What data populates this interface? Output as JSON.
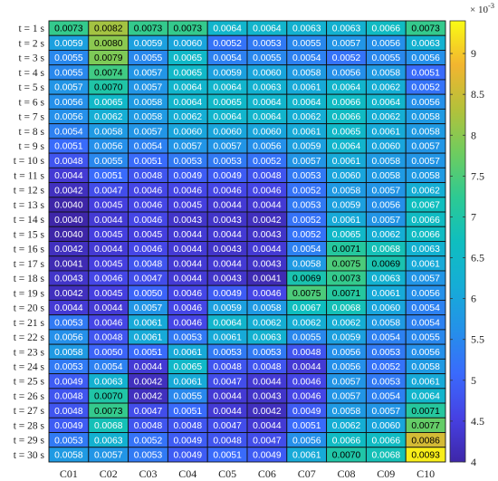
{
  "chart_data": {
    "type": "heatmap",
    "title": "",
    "xlabel": "",
    "ylabel": "",
    "rows": [
      "t = 1 s",
      "t = 2 s",
      "t = 3 s",
      "t = 4 s",
      "t = 5 s",
      "t = 6 s",
      "t = 7 s",
      "t = 8 s",
      "t = 9 s",
      "t = 10 s",
      "t = 11 s",
      "t = 12 s",
      "t = 13 s",
      "t = 14 s",
      "t = 15 s",
      "t = 16 s",
      "t = 17 s",
      "t = 18 s",
      "t = 19 s",
      "t = 20 s",
      "t = 21 s",
      "t = 22 s",
      "t = 23 s",
      "t = 24 s",
      "t = 25 s",
      "t = 26 s",
      "t = 27 s",
      "t = 28 s",
      "t = 29 s",
      "t = 30 s"
    ],
    "columns": [
      "C01",
      "C02",
      "C03",
      "C04",
      "C05",
      "C06",
      "C07",
      "C08",
      "C09",
      "C10"
    ],
    "values": [
      [
        "0.0073",
        "0.0082",
        "0.0073",
        "0.0073",
        "0.0064",
        "0.0064",
        "0.0063",
        "0.0063",
        "0.0066",
        "0.0073"
      ],
      [
        "0.0059",
        "0.0080",
        "0.0059",
        "0.0060",
        "0.0052",
        "0.0053",
        "0.0055",
        "0.0057",
        "0.0056",
        "0.0063"
      ],
      [
        "0.0055",
        "0.0079",
        "0.0055",
        "0.0065",
        "0.0054",
        "0.0055",
        "0.0054",
        "0.0052",
        "0.0055",
        "0.0056"
      ],
      [
        "0.0055",
        "0.0074",
        "0.0057",
        "0.0065",
        "0.0059",
        "0.0060",
        "0.0058",
        "0.0056",
        "0.0058",
        "0.0051"
      ],
      [
        "0.0057",
        "0.0070",
        "0.0057",
        "0.0064",
        "0.0064",
        "0.0063",
        "0.0061",
        "0.0064",
        "0.0062",
        "0.0052"
      ],
      [
        "0.0056",
        "0.0065",
        "0.0058",
        "0.0064",
        "0.0065",
        "0.0064",
        "0.0064",
        "0.0066",
        "0.0064",
        "0.0056"
      ],
      [
        "0.0056",
        "0.0062",
        "0.0058",
        "0.0062",
        "0.0064",
        "0.0064",
        "0.0062",
        "0.0066",
        "0.0062",
        "0.0058"
      ],
      [
        "0.0054",
        "0.0058",
        "0.0057",
        "0.0060",
        "0.0060",
        "0.0060",
        "0.0061",
        "0.0065",
        "0.0061",
        "0.0058"
      ],
      [
        "0.0051",
        "0.0056",
        "0.0054",
        "0.0057",
        "0.0057",
        "0.0056",
        "0.0059",
        "0.0064",
        "0.0060",
        "0.0057"
      ],
      [
        "0.0048",
        "0.0055",
        "0.0051",
        "0.0053",
        "0.0053",
        "0.0052",
        "0.0057",
        "0.0061",
        "0.0058",
        "0.0057"
      ],
      [
        "0.0044",
        "0.0051",
        "0.0048",
        "0.0049",
        "0.0049",
        "0.0048",
        "0.0053",
        "0.0060",
        "0.0058",
        "0.0058"
      ],
      [
        "0.0042",
        "0.0047",
        "0.0046",
        "0.0046",
        "0.0046",
        "0.0046",
        "0.0052",
        "0.0058",
        "0.0057",
        "0.0062"
      ],
      [
        "0.0040",
        "0.0045",
        "0.0046",
        "0.0045",
        "0.0044",
        "0.0044",
        "0.0053",
        "0.0059",
        "0.0056",
        "0.0067"
      ],
      [
        "0.0040",
        "0.0044",
        "0.0046",
        "0.0043",
        "0.0043",
        "0.0042",
        "0.0052",
        "0.0061",
        "0.0057",
        "0.0066"
      ],
      [
        "0.0040",
        "0.0045",
        "0.0045",
        "0.0044",
        "0.0044",
        "0.0043",
        "0.0052",
        "0.0065",
        "0.0062",
        "0.0066"
      ],
      [
        "0.0042",
        "0.0044",
        "0.0046",
        "0.0044",
        "0.0043",
        "0.0044",
        "0.0054",
        "0.0071",
        "0.0068",
        "0.0063"
      ],
      [
        "0.0041",
        "0.0045",
        "0.0048",
        "0.0044",
        "0.0044",
        "0.0043",
        "0.0058",
        "0.0075",
        "0.0069",
        "0.0061"
      ],
      [
        "0.0043",
        "0.0046",
        "0.0047",
        "0.0044",
        "0.0043",
        "0.0041",
        "0.0069",
        "0.0073",
        "0.0063",
        "0.0057"
      ],
      [
        "0.0042",
        "0.0045",
        "0.0050",
        "0.0046",
        "0.0049",
        "0.0046",
        "0.0075",
        "0.0071",
        "0.0061",
        "0.0056"
      ],
      [
        "0.0044",
        "0.0044",
        "0.0057",
        "0.0046",
        "0.0059",
        "0.0058",
        "0.0067",
        "0.0068",
        "0.0060",
        "0.0054"
      ],
      [
        "0.0053",
        "0.0046",
        "0.0061",
        "0.0046",
        "0.0064",
        "0.0062",
        "0.0062",
        "0.0062",
        "0.0058",
        "0.0054"
      ],
      [
        "0.0056",
        "0.0048",
        "0.0061",
        "0.0053",
        "0.0061",
        "0.0063",
        "0.0055",
        "0.0059",
        "0.0054",
        "0.0055"
      ],
      [
        "0.0058",
        "0.0050",
        "0.0051",
        "0.0061",
        "0.0053",
        "0.0053",
        "0.0048",
        "0.0056",
        "0.0053",
        "0.0056"
      ],
      [
        "0.0053",
        "0.0054",
        "0.0044",
        "0.0065",
        "0.0048",
        "0.0048",
        "0.0044",
        "0.0056",
        "0.0052",
        "0.0058"
      ],
      [
        "0.0049",
        "0.0063",
        "0.0042",
        "0.0061",
        "0.0047",
        "0.0044",
        "0.0046",
        "0.0057",
        "0.0053",
        "0.0061"
      ],
      [
        "0.0048",
        "0.0070",
        "0.0042",
        "0.0055",
        "0.0044",
        "0.0043",
        "0.0046",
        "0.0057",
        "0.0054",
        "0.0064"
      ],
      [
        "0.0048",
        "0.0073",
        "0.0047",
        "0.0051",
        "0.0044",
        "0.0042",
        "0.0049",
        "0.0058",
        "0.0057",
        "0.0071"
      ],
      [
        "0.0049",
        "0.0068",
        "0.0048",
        "0.0048",
        "0.0047",
        "0.0044",
        "0.0051",
        "0.0062",
        "0.0060",
        "0.0077"
      ],
      [
        "0.0053",
        "0.0063",
        "0.0052",
        "0.0049",
        "0.0048",
        "0.0047",
        "0.0056",
        "0.0066",
        "0.0066",
        "0.0086"
      ],
      [
        "0.0058",
        "0.0057",
        "0.0053",
        "0.0049",
        "0.0051",
        "0.0049",
        "0.0061",
        "0.0070",
        "0.0068",
        "0.0093"
      ]
    ],
    "colorbar": {
      "colormap": "parula",
      "range": [
        0.004,
        0.0094
      ],
      "ticks": [
        4,
        4.5,
        5,
        5.5,
        6,
        6.5,
        7,
        7.5,
        8,
        8.5,
        9
      ],
      "tick_labels": [
        "4",
        "4.5",
        "5",
        "5.5",
        "6",
        "6.5",
        "7",
        "7.5",
        "8",
        "8.5",
        "9"
      ],
      "multiplier_base": "× 10",
      "multiplier_exponent": "-3"
    },
    "grid": true,
    "legend": "colorbar-right"
  }
}
